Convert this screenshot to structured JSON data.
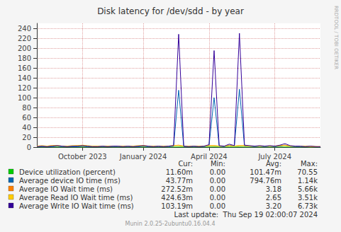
{
  "chart_data": {
    "type": "line",
    "title": "Disk latency for /dev/sdd - by year",
    "categories": [
      null,
      null,
      null,
      null,
      null,
      null,
      null,
      null,
      null,
      "October 2023",
      null,
      null,
      null,
      null,
      null,
      null,
      null,
      null,
      null,
      null,
      null,
      "January 2024",
      null,
      null,
      null,
      null,
      null,
      null,
      null,
      null,
      null,
      null,
      null,
      null,
      "April 2024",
      null,
      null,
      null,
      null,
      null,
      null,
      null,
      null,
      null,
      null,
      null,
      null,
      "July 2024",
      null,
      null,
      null,
      null,
      null,
      null,
      null,
      null,
      null
    ],
    "series": [
      {
        "name": "Device utilization (percent)",
        "color": "#00cc00",
        "stats": [
          "11.60m",
          "0.00",
          "101.47m",
          "70.55"
        ],
        "values": [
          0.1,
          0.1,
          0.1,
          0.1,
          0.2,
          0.1,
          0.1,
          0.1,
          0.1,
          0.2,
          0.1,
          0.1,
          0.1,
          0.1,
          0.1,
          0.1,
          0.1,
          0.1,
          0.1,
          0.1,
          0.1,
          0.2,
          0.1,
          0.1,
          0.1,
          0.1,
          0.1,
          0.1,
          0.3,
          0.1,
          0.1,
          0.1,
          0.1,
          0.1,
          0.2,
          0.3,
          0.1,
          0.1,
          0.2,
          0.1,
          0.3,
          0.1,
          0.1,
          0.1,
          0.1,
          0.1,
          0.1,
          0.1,
          0.1,
          0.2,
          0.1,
          0.1,
          0.1,
          0.1,
          0.1,
          0.1,
          0.1
        ]
      },
      {
        "name": "Average device IO time (ms)",
        "color": "#0066b3",
        "stats": [
          "43.77m",
          "0.00",
          "794.76m",
          "1.14k"
        ],
        "values": [
          1,
          1,
          1,
          1,
          2,
          1,
          1,
          1,
          1,
          2,
          1,
          1,
          1,
          1,
          1,
          1,
          1,
          1,
          1,
          1,
          1,
          2,
          1,
          1,
          1,
          1,
          1,
          2,
          115,
          1,
          1,
          1,
          1,
          1,
          3,
          100,
          2,
          1,
          4,
          2,
          117,
          2,
          2,
          1,
          2,
          1,
          2,
          1,
          2,
          4,
          2,
          1,
          1,
          1,
          1,
          1,
          0
        ]
      },
      {
        "name": "Average IO Wait time (ms)",
        "color": "#ff8000",
        "stats": [
          "272.52m",
          "0.00",
          "3.18",
          "5.66k"
        ],
        "values": [
          2,
          2,
          2,
          3,
          3,
          2,
          2,
          2,
          3,
          3,
          2,
          2,
          2,
          2,
          2,
          2,
          2,
          2,
          2,
          2,
          2,
          3,
          2,
          2,
          2,
          2,
          2,
          3,
          4,
          2,
          2,
          2,
          2,
          2,
          3,
          3,
          2,
          2,
          3,
          2,
          3,
          3,
          2,
          2,
          2,
          2,
          2,
          2,
          3,
          4,
          2,
          2,
          2,
          2,
          2,
          1,
          1
        ]
      },
      {
        "name": "Average Read IO Wait time (ms)",
        "color": "#ffcc00",
        "stats": [
          "424.63m",
          "0.00",
          "2.65",
          "3.51k"
        ],
        "values": [
          2,
          3,
          2,
          3,
          3,
          2,
          2,
          3,
          3,
          4,
          3,
          2,
          2,
          2,
          2,
          2,
          2,
          2,
          2,
          2,
          3,
          3,
          2,
          2,
          2,
          2,
          2,
          3,
          3,
          2,
          2,
          2,
          2,
          2,
          3,
          3,
          2,
          2,
          3,
          2,
          3,
          3,
          2,
          2,
          2,
          2,
          2,
          2,
          3,
          3,
          2,
          2,
          2,
          2,
          1,
          1,
          1
        ]
      },
      {
        "name": "Average Write IO Wait time (ms)",
        "color": "#330099",
        "stats": [
          "103.19m",
          "0.00",
          "3.20",
          "6.73k"
        ],
        "values": [
          1,
          2,
          1,
          2,
          3,
          2,
          1,
          2,
          2,
          3,
          2,
          1,
          1,
          2,
          1,
          2,
          2,
          1,
          2,
          1,
          2,
          3,
          2,
          1,
          2,
          1,
          2,
          3,
          228,
          2,
          1,
          2,
          1,
          2,
          5,
          195,
          3,
          2,
          6,
          3,
          230,
          4,
          3,
          2,
          3,
          2,
          3,
          2,
          4,
          7,
          3,
          2,
          2,
          1,
          2,
          1,
          1
        ]
      }
    ],
    "ylim": [
      0,
      250
    ],
    "yticks": [
      0,
      20,
      40,
      60,
      80,
      100,
      120,
      140,
      160,
      180,
      200,
      220,
      240
    ],
    "grid": true,
    "stats_header": [
      "Cur:",
      "Min:",
      "Avg:",
      "Max:"
    ],
    "footer": "Last update:  Thu Sep 19 02:00:07 2024",
    "credit": "Munin 2.0.25-2ubuntu0.16.04.4",
    "watermark": "RRDTOOL / TOBI OETIKER"
  }
}
